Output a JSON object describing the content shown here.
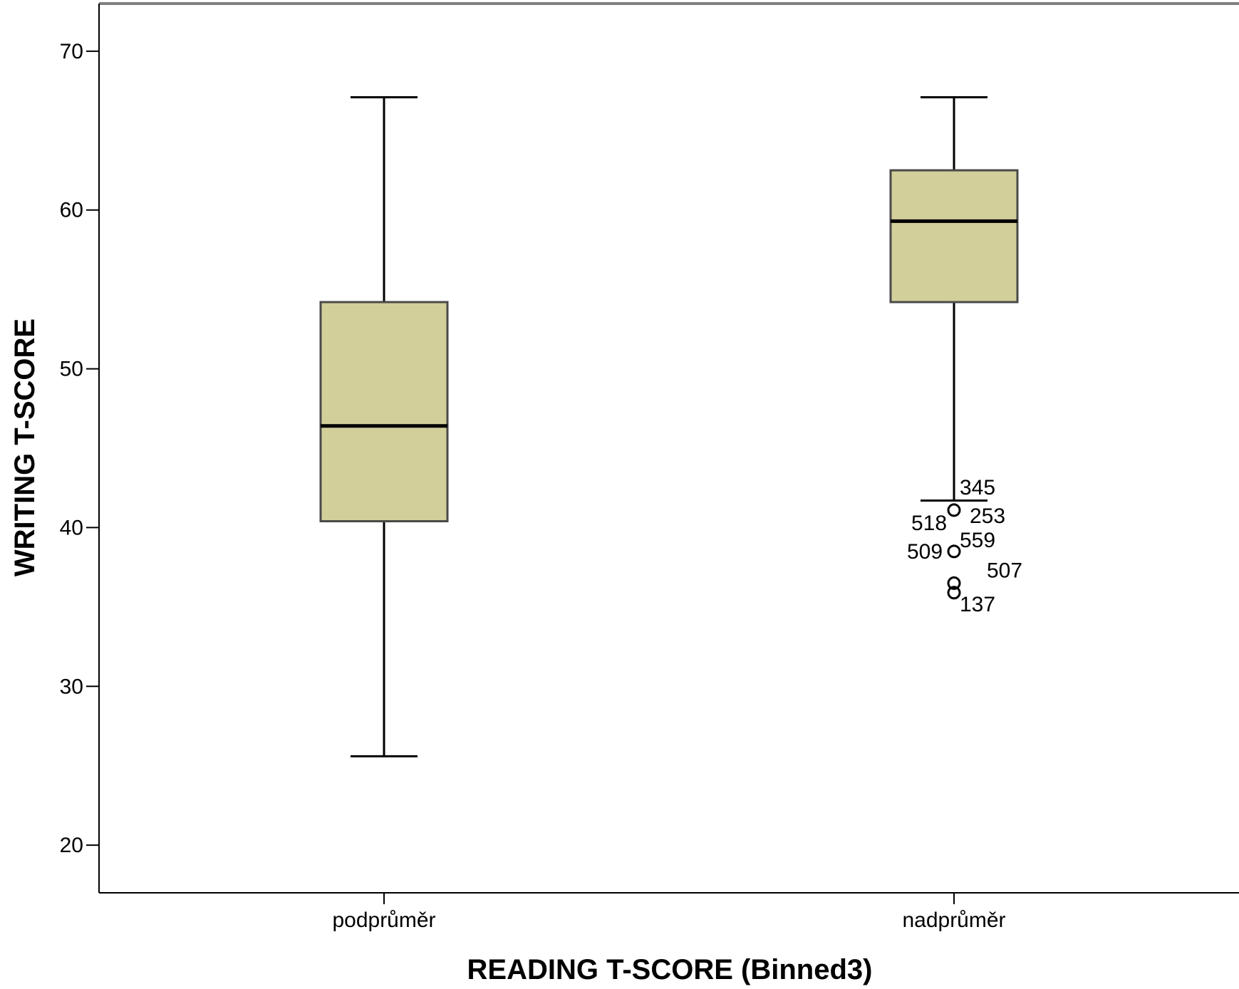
{
  "chart_data": {
    "type": "boxplot",
    "xlabel": "READING T-SCORE (Binned3)",
    "ylabel": "WRITING T-SCORE",
    "ylim": [
      17,
      73
    ],
    "yticks": [
      20,
      30,
      40,
      50,
      60,
      70
    ],
    "grid": false,
    "colors": {
      "box_fill": "#d3cf9b",
      "box_stroke": "#4a4a4a",
      "line": "#000000",
      "frame": "#808080"
    },
    "categories": [
      "podprůměr",
      "nadprůměr"
    ],
    "boxes": [
      {
        "category": "podprůměr",
        "whisker_low": 25.6,
        "q1": 40.4,
        "median": 46.4,
        "q3": 54.2,
        "whisker_high": 67.1,
        "outliers": []
      },
      {
        "category": "nadprůměr",
        "whisker_low": 41.7,
        "q1": 54.2,
        "median": 59.3,
        "q3": 62.5,
        "whisker_high": 67.1,
        "outliers": [
          {
            "y": 41.1,
            "labels": [
              "345",
              "253",
              "518"
            ]
          },
          {
            "y": 38.5,
            "labels": [
              "559",
              "509"
            ]
          },
          {
            "y": 36.5,
            "labels": [
              "507"
            ]
          },
          {
            "y": 35.9,
            "labels": [
              "137"
            ]
          }
        ]
      }
    ]
  }
}
